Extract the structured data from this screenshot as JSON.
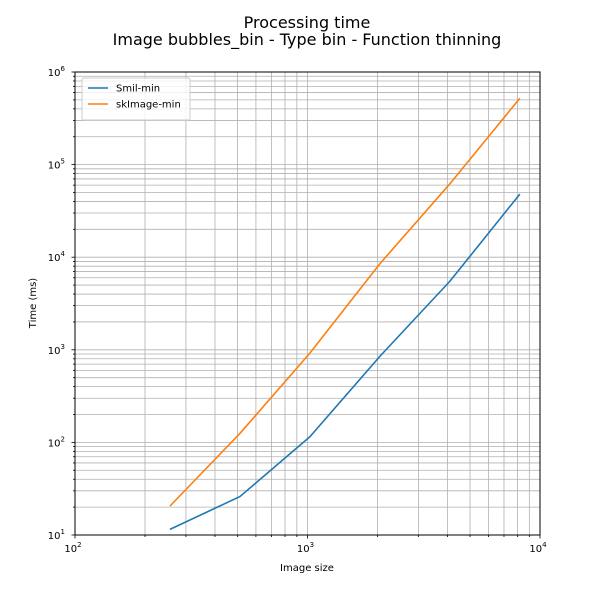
{
  "chart_data": {
    "type": "line",
    "title": "Processing time",
    "subtitle": "Image bubbles_bin - Type bin - Function thinning",
    "xlabel": "Image size",
    "ylabel": "Time (ms)",
    "xscale": "log",
    "yscale": "log",
    "xlim": [
      100,
      10000
    ],
    "ylim": [
      10,
      1000000
    ],
    "grid": true,
    "legend_position": "top-left",
    "xticks": [
      {
        "base": "10",
        "exp": "2"
      },
      {
        "base": "10",
        "exp": "3"
      },
      {
        "base": "10",
        "exp": "4"
      }
    ],
    "yticks": [
      {
        "base": "10",
        "exp": "1"
      },
      {
        "base": "10",
        "exp": "2"
      },
      {
        "base": "10",
        "exp": "3"
      },
      {
        "base": "10",
        "exp": "4"
      },
      {
        "base": "10",
        "exp": "5"
      },
      {
        "base": "10",
        "exp": "6"
      }
    ],
    "series": [
      {
        "name": "Smil-min",
        "color": "#1f77b4",
        "x": [
          256,
          512,
          1024,
          2048,
          4096,
          8192
        ],
        "y": [
          11.5,
          26,
          115,
          850,
          5500,
          48000
        ]
      },
      {
        "name": "skImage-min",
        "color": "#ff7f0e",
        "x": [
          256,
          512,
          1024,
          2048,
          4096,
          8192
        ],
        "y": [
          20.5,
          125,
          920,
          8500,
          62000,
          520000
        ]
      }
    ]
  }
}
